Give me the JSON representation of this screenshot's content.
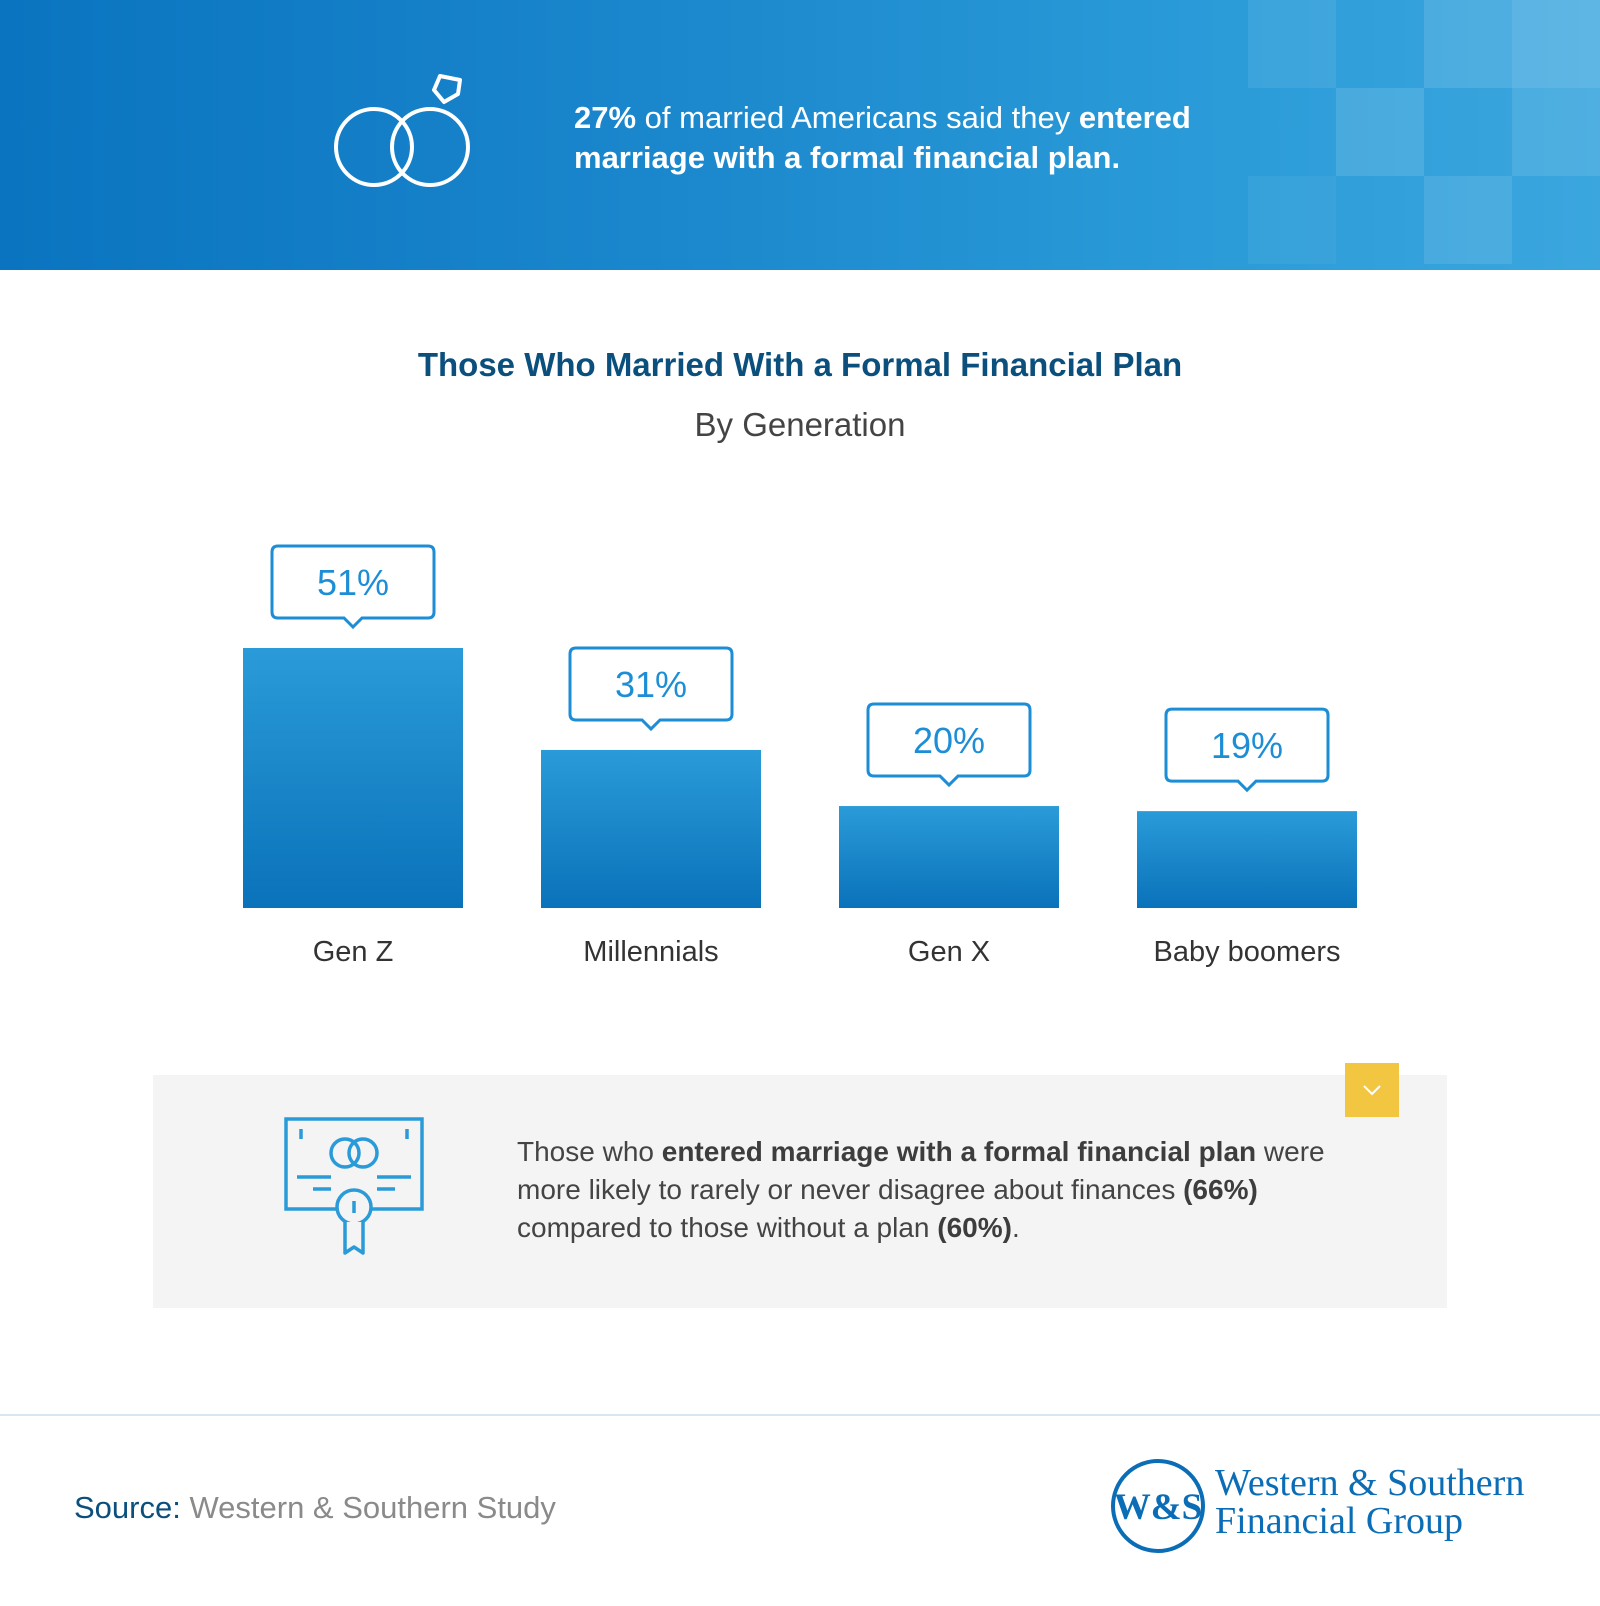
{
  "banner": {
    "stat": "27%",
    "text_mid": " of married Americans said they ",
    "text_bold": "entered marriage with a formal financial plan.",
    "icon": "wedding-rings-icon"
  },
  "chart_data": {
    "type": "bar",
    "title": "Those Who Married With a Formal Financial Plan",
    "subtitle": "By Generation",
    "categories": [
      "Gen Z",
      "Millennials",
      "Gen X",
      "Baby boomers"
    ],
    "values": [
      51,
      31,
      20,
      19
    ],
    "value_labels": [
      "51%",
      "31%",
      "20%",
      "19%"
    ],
    "unit": "%",
    "ylim": [
      0,
      51
    ],
    "grid": false,
    "legend": "none",
    "bar_color_top": "#2a9bd8",
    "bar_color_bottom": "#0a72ba",
    "label_color": "#1d8ed6"
  },
  "callout": {
    "icon": "marriage-certificate-icon",
    "expand_icon": "chevron-down-icon",
    "t1": "Those who ",
    "t2": "entered marriage with a formal financial plan",
    "t3": " were more likely to rarely or never disagree about finances ",
    "t4": "(66%)",
    "t5": " compared to those without a plan ",
    "t6": "(60%)",
    "t7": "."
  },
  "footer": {
    "source_label": "Source:",
    "source_text": " Western & Southern Study",
    "logo_monogram": "W&S",
    "logo_line1": "Western & Southern",
    "logo_line2": "Financial Group"
  },
  "colors": {
    "brand_blue": "#0a74c0",
    "title_navy": "#0b4f7d",
    "accent_yellow": "#f2c641"
  }
}
